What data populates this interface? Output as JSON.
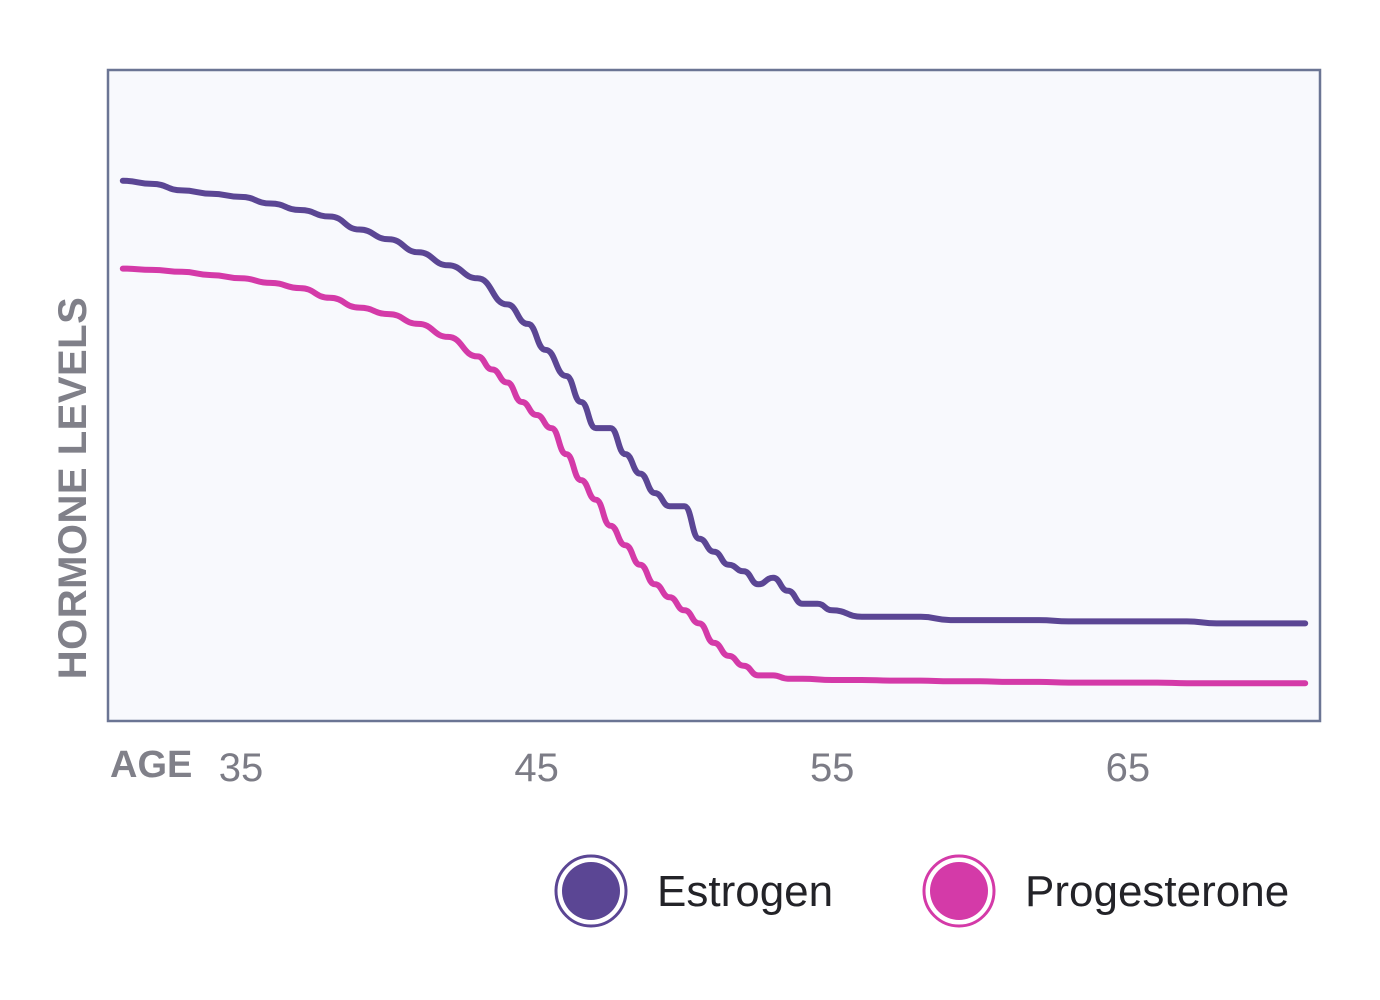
{
  "chart_data": {
    "type": "line",
    "title": "",
    "xlabel": "AGE",
    "ylabel": "HORMONE LEVELS",
    "xlim": [
      30.5,
      71.5
    ],
    "ylim": [
      0,
      100
    ],
    "xticks": [
      35,
      45,
      55,
      65
    ],
    "grid": false,
    "legend_position": "bottom-right",
    "colors": {
      "frame": "#6b7594",
      "background": "#f8f9fd"
    },
    "series": [
      {
        "name": "Estrogen",
        "color": "#5b4694",
        "x": [
          31,
          32,
          33,
          34,
          35,
          36,
          37,
          38,
          39,
          40,
          41,
          42,
          43,
          44,
          44.7,
          45.3,
          46,
          46.5,
          47,
          47.5,
          48,
          48.5,
          49,
          49.5,
          50,
          50.5,
          51,
          51.5,
          52,
          52.5,
          53,
          53.5,
          54,
          54.5,
          55,
          56,
          57,
          58,
          59,
          60,
          61,
          62,
          63,
          64,
          65,
          66,
          67,
          68,
          69,
          70,
          71
        ],
        "y": [
          83,
          82.5,
          81.5,
          81,
          80.5,
          79.5,
          78.5,
          77.5,
          75.5,
          74,
          72,
          70,
          68,
          64,
          61,
          57,
          53,
          49,
          45,
          45,
          41,
          38,
          35,
          33,
          33,
          28,
          26,
          24,
          23,
          21,
          22,
          20,
          18,
          18,
          17,
          16,
          16,
          16,
          15.5,
          15.5,
          15.5,
          15.5,
          15.3,
          15.3,
          15.3,
          15.3,
          15.3,
          15,
          15,
          15,
          15
        ]
      },
      {
        "name": "Progesterone",
        "color": "#d43aa8",
        "x": [
          31,
          32,
          33,
          34,
          35,
          36,
          37,
          38,
          39,
          40,
          41,
          42,
          43,
          43.5,
          44,
          44.5,
          45,
          45.5,
          46,
          46.5,
          47,
          47.5,
          48,
          48.5,
          49,
          49.5,
          50,
          50.5,
          51,
          51.5,
          52,
          52.5,
          53,
          53.5,
          54,
          55,
          56,
          57,
          58,
          59,
          60,
          61,
          62,
          63,
          64,
          65,
          66,
          67,
          68,
          69,
          70,
          71
        ],
        "y": [
          69.5,
          69.3,
          69,
          68.5,
          68,
          67.3,
          66.5,
          65,
          63.5,
          62.5,
          61,
          59,
          56,
          54,
          52,
          49,
          47,
          45,
          41,
          37,
          34,
          30,
          27,
          24,
          21,
          19,
          17,
          15,
          12,
          10,
          8.5,
          7,
          7,
          6.5,
          6.5,
          6.3,
          6.3,
          6.2,
          6.2,
          6.1,
          6.1,
          6.0,
          6.0,
          5.9,
          5.9,
          5.9,
          5.9,
          5.8,
          5.8,
          5.8,
          5.8,
          5.8
        ]
      }
    ]
  }
}
